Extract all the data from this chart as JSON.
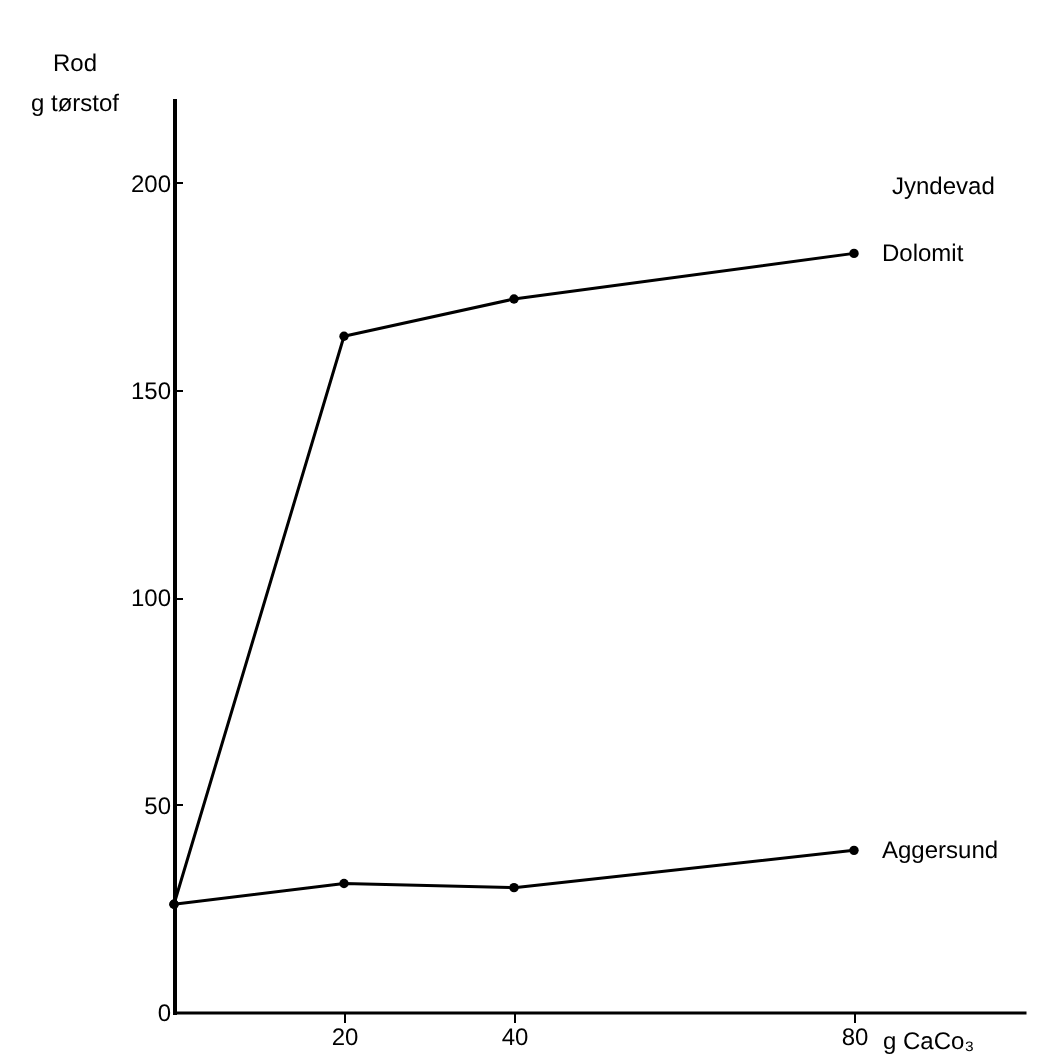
{
  "chart_data": {
    "type": "line",
    "xlabel": "g CaCo₃",
    "ylabel": "Rod\ng tørstof",
    "annotations": [
      "Jyndevad"
    ],
    "x": [
      0,
      20,
      40,
      80
    ],
    "xlim": [
      0,
      100
    ],
    "xticks": [
      20,
      40,
      80
    ],
    "ylim": [
      0,
      220
    ],
    "yticks": [
      0,
      50,
      100,
      150,
      200
    ],
    "series": [
      {
        "name": "Dolomit",
        "color": "#000000",
        "values": [
          26,
          163,
          172,
          183
        ]
      },
      {
        "name": "Aggersund",
        "color": "#000000",
        "values": [
          26,
          31,
          30,
          39
        ]
      }
    ],
    "marker": "circle",
    "line_style": "solid",
    "grid": false,
    "legend": false
  }
}
